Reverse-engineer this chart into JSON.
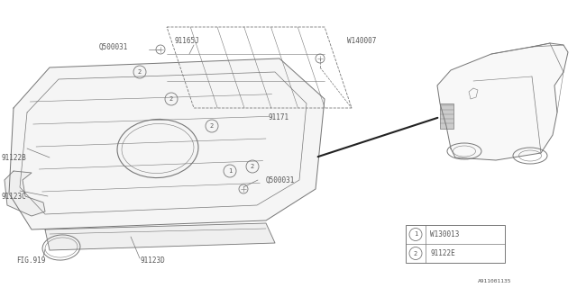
{
  "bg_color": "#ffffff",
  "line_color": "#777777",
  "text_color": "#555555",
  "fs": 5.5,
  "legend": [
    {
      "num": "1",
      "code": "W130013"
    },
    {
      "num": "2",
      "code": "91122E"
    }
  ]
}
